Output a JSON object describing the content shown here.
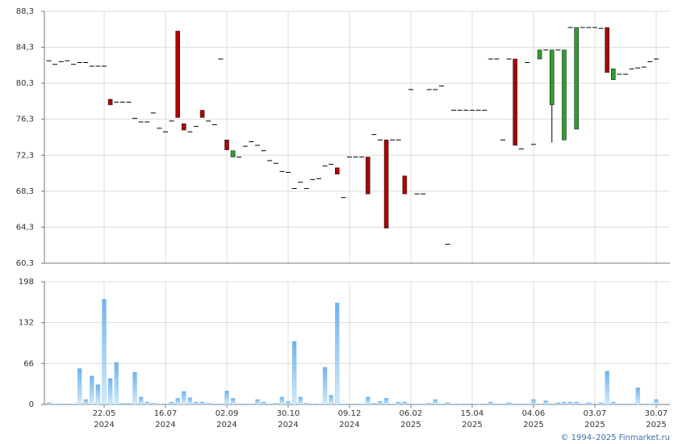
{
  "chart_data": [
    {
      "type": "candlestick",
      "open": [
        82.8,
        82.4,
        82.7,
        82.8,
        82.4,
        82.6,
        82.6,
        82.2,
        82.2,
        82.2,
        78.5,
        78.2,
        78.2,
        78.2,
        76.4,
        76.0,
        76.0,
        77.0,
        75.3,
        74.9,
        76.1,
        86.1,
        75.8,
        74.9,
        75.5,
        77.3,
        76.1,
        75.7,
        83.0,
        74.0,
        72.1,
        72.1,
        73.3,
        73.8,
        73.4,
        72.8,
        71.7,
        71.4,
        70.5,
        70.4,
        68.6,
        69.3,
        68.6,
        69.6,
        69.7,
        71.1,
        71.3,
        70.9,
        67.6,
        72.1,
        72.1,
        72.1,
        72.1,
        74.6,
        74.0,
        74.0,
        74.0,
        74.0,
        70.0,
        79.6,
        68.0,
        68.0,
        79.6,
        79.6,
        80.0,
        62.4,
        77.3,
        77.3,
        77.3,
        77.3,
        77.3,
        77.3,
        83.0,
        83.0,
        74.0,
        83.0,
        83.0,
        73.0,
        82.6,
        73.5,
        83.0,
        84.0,
        77.9,
        84.0,
        74.0,
        86.5,
        75.2,
        86.5,
        86.5,
        86.5,
        86.4,
        86.5,
        80.7,
        81.3,
        81.3,
        81.9,
        82.0,
        82.1,
        82.7,
        83.0
      ],
      "high": [
        82.8,
        82.4,
        82.7,
        82.8,
        82.4,
        82.6,
        82.6,
        82.2,
        82.2,
        82.2,
        78.6,
        78.2,
        78.2,
        78.2,
        76.4,
        76.0,
        76.0,
        77.0,
        75.3,
        74.9,
        76.1,
        86.1,
        75.8,
        74.9,
        75.5,
        77.3,
        76.1,
        75.7,
        83.0,
        74.0,
        72.8,
        72.1,
        73.3,
        73.8,
        73.4,
        72.8,
        71.7,
        71.4,
        70.5,
        70.4,
        68.6,
        69.3,
        68.6,
        69.6,
        69.7,
        71.1,
        71.3,
        70.9,
        67.6,
        72.1,
        72.1,
        72.1,
        72.1,
        74.6,
        74.0,
        74.0,
        74.0,
        74.0,
        70.0,
        79.6,
        68.0,
        68.0,
        79.6,
        79.6,
        80.0,
        62.4,
        77.3,
        77.3,
        77.3,
        77.3,
        77.3,
        77.3,
        83.0,
        83.0,
        74.0,
        83.0,
        83.0,
        73.0,
        82.6,
        73.5,
        84.0,
        84.0,
        84.0,
        84.0,
        84.0,
        86.5,
        86.5,
        86.5,
        86.5,
        86.5,
        86.4,
        86.5,
        81.9,
        81.3,
        81.3,
        81.9,
        82.0,
        82.1,
        82.7,
        83.0
      ],
      "low": [
        82.8,
        82.4,
        82.7,
        82.8,
        82.4,
        82.6,
        82.6,
        82.2,
        82.2,
        82.2,
        77.9,
        78.2,
        78.2,
        78.2,
        76.4,
        76.0,
        76.0,
        77.0,
        75.3,
        74.9,
        76.1,
        76.5,
        75.1,
        74.9,
        75.5,
        76.5,
        76.1,
        75.7,
        83.0,
        72.9,
        72.1,
        72.1,
        73.3,
        73.8,
        73.4,
        72.8,
        71.7,
        71.4,
        70.5,
        70.4,
        68.6,
        69.3,
        68.6,
        69.6,
        69.7,
        71.1,
        71.3,
        70.2,
        67.6,
        72.1,
        72.1,
        72.1,
        68.0,
        74.6,
        74.0,
        64.2,
        74.0,
        74.0,
        68.0,
        79.6,
        68.0,
        68.0,
        79.6,
        79.6,
        80.0,
        62.4,
        77.3,
        77.3,
        77.3,
        77.3,
        77.3,
        77.3,
        83.0,
        83.0,
        74.0,
        83.0,
        73.4,
        73.0,
        82.6,
        73.5,
        83.0,
        84.0,
        73.7,
        84.0,
        74.0,
        86.5,
        75.2,
        86.5,
        86.5,
        86.5,
        86.4,
        81.5,
        80.7,
        81.3,
        81.3,
        81.9,
        82.0,
        82.1,
        82.7,
        83.0
      ],
      "close": [
        82.8,
        82.4,
        82.7,
        82.8,
        82.4,
        82.6,
        82.6,
        82.2,
        82.2,
        82.2,
        77.9,
        78.2,
        78.2,
        78.2,
        76.4,
        76.0,
        76.0,
        77.0,
        75.3,
        74.9,
        76.1,
        76.5,
        75.1,
        74.9,
        75.5,
        76.5,
        76.1,
        75.7,
        83.0,
        72.9,
        72.8,
        72.1,
        73.3,
        73.8,
        73.4,
        72.8,
        71.7,
        71.4,
        70.5,
        70.4,
        68.6,
        69.3,
        68.6,
        69.6,
        69.7,
        71.1,
        71.3,
        70.2,
        67.6,
        72.1,
        72.1,
        72.1,
        68.0,
        74.6,
        74.0,
        64.2,
        74.0,
        74.0,
        68.0,
        79.6,
        68.0,
        68.0,
        79.6,
        79.6,
        80.0,
        62.4,
        77.3,
        77.3,
        77.3,
        77.3,
        77.3,
        77.3,
        83.0,
        83.0,
        74.0,
        83.0,
        73.4,
        73.0,
        82.6,
        73.5,
        84.0,
        84.0,
        84.0,
        84.0,
        84.0,
        86.5,
        86.5,
        86.5,
        86.5,
        86.5,
        86.4,
        81.5,
        81.9,
        81.3,
        81.3,
        81.9,
        82.0,
        82.1,
        82.7,
        83.0
      ],
      "up_color": "#2ca02c",
      "down_color": "#b00000",
      "xlim": [
        -0.74,
        101.24
      ],
      "ylim": [
        60.3,
        88.3
      ],
      "yticks": [
        {
          "value": 60.3,
          "label": "60,3"
        },
        {
          "value": 64.3,
          "label": "64,3"
        },
        {
          "value": 68.3,
          "label": "68,3"
        },
        {
          "value": 72.3,
          "label": "72,3"
        },
        {
          "value": 76.3,
          "label": "76,3"
        },
        {
          "value": 80.3,
          "label": "80,3"
        },
        {
          "value": 84.3,
          "label": "84,3"
        },
        {
          "value": 88.3,
          "label": "88,3"
        }
      ],
      "grid": true
    },
    {
      "type": "bar",
      "values": [
        3,
        1,
        1,
        1,
        1,
        58,
        8,
        46,
        32,
        170,
        42,
        68,
        2,
        2,
        52,
        12,
        4,
        2,
        1,
        1,
        4,
        10,
        21,
        11,
        4,
        4,
        2,
        1,
        1,
        22,
        10,
        1,
        1,
        1,
        8,
        4,
        1,
        2,
        12,
        5,
        102,
        12,
        2,
        1,
        1,
        60,
        15,
        164,
        1,
        1,
        1,
        1,
        12,
        2,
        5,
        10,
        1,
        4,
        4,
        1,
        1,
        1,
        2,
        8,
        1,
        3,
        1,
        1,
        1,
        1,
        1,
        1,
        4,
        1,
        1,
        3,
        1,
        1,
        1,
        8,
        1,
        6,
        1,
        3,
        4,
        4,
        4,
        1,
        3,
        1,
        3,
        54,
        4,
        1,
        1,
        1,
        27,
        1,
        1,
        8
      ],
      "color": "#7dbcee",
      "xlim": [
        -0.74,
        101.24
      ],
      "ylim": [
        0,
        198
      ],
      "yticks": [
        0,
        66,
        132,
        198
      ],
      "xticks": [
        {
          "value": 9,
          "label": "22.05"
        },
        {
          "value": 19,
          "label": "16.07"
        },
        {
          "value": 29,
          "label": "02.09"
        },
        {
          "value": 39,
          "label": "30.10"
        },
        {
          "value": 49,
          "label": "09.12"
        },
        {
          "value": 59,
          "label": "06.02"
        },
        {
          "value": 69,
          "label": "15.04"
        },
        {
          "value": 79,
          "label": "04.06"
        },
        {
          "value": 89,
          "label": "03.07"
        },
        {
          "value": 99,
          "label": "30.07"
        }
      ],
      "xtick_years": [
        "2024",
        "2024",
        "2024",
        "2024",
        "2024",
        "2025",
        "2025",
        "2025",
        "2025",
        "2025"
      ],
      "grid": true
    }
  ],
  "footer": "© 1994–2025 Finmarket.ru"
}
